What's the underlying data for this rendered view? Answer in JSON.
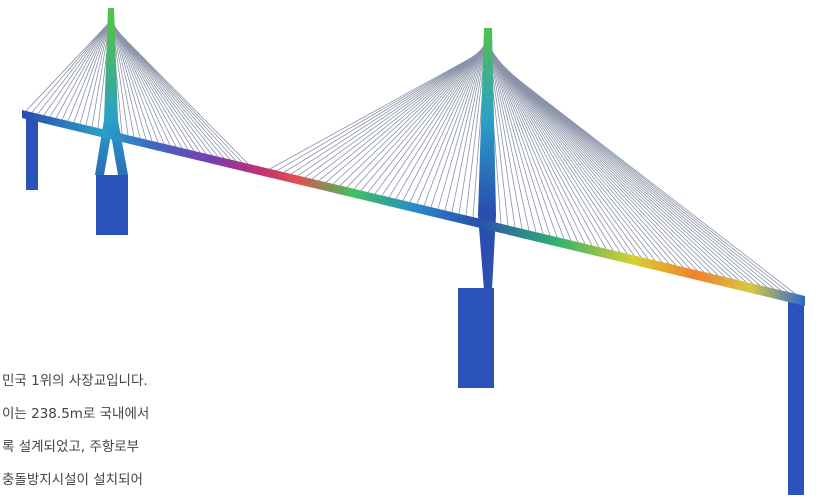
{
  "text": {
    "lines": [
      "민국 1위의 사장교입니다.",
      "이는 238.5m로 국내에서",
      "록 설계되었고, 주항로부",
      "충돌방지시설이 설치되어"
    ]
  }
}
